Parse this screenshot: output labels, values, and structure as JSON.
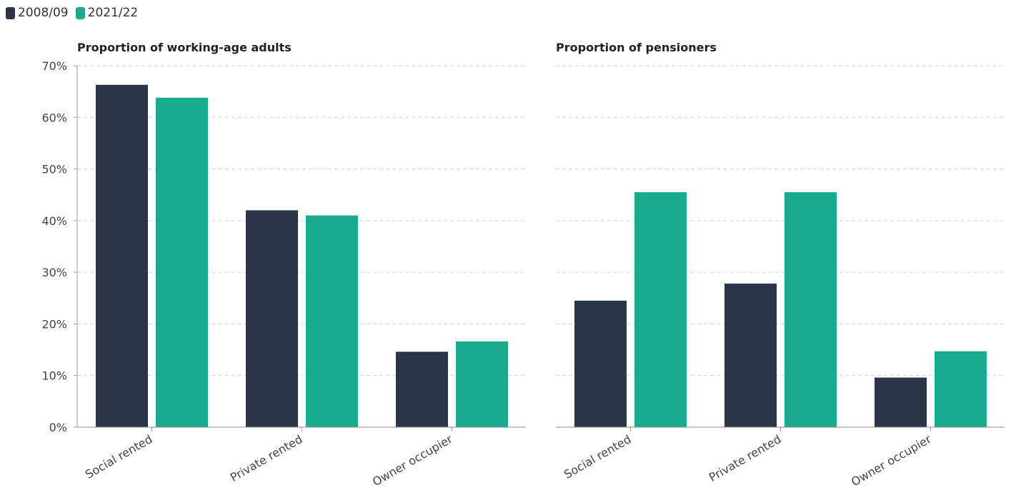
{
  "legend": {
    "items": [
      {
        "label": "2008/09",
        "color": "#2a3648"
      },
      {
        "label": "2021/22",
        "color": "#19ab8e"
      }
    ]
  },
  "chart_data": [
    {
      "type": "bar",
      "title": "Proportion of working-age adults",
      "categories": [
        "Social rented",
        "Private rented",
        "Owner occupier"
      ],
      "series": [
        {
          "name": "2008/09",
          "values": [
            66.3,
            42.0,
            14.6
          ]
        },
        {
          "name": "2021/22",
          "values": [
            63.8,
            41.0,
            16.6
          ]
        }
      ],
      "ylim": [
        0,
        70
      ],
      "yticks": [
        "0%",
        "10%",
        "20%",
        "30%",
        "40%",
        "50%",
        "60%",
        "70%"
      ],
      "grid": true,
      "legend_position": "top-left"
    },
    {
      "type": "bar",
      "title": "Proportion of pensioners",
      "categories": [
        "Social rented",
        "Private rented",
        "Owner occupier"
      ],
      "series": [
        {
          "name": "2008/09",
          "values": [
            24.5,
            27.8,
            9.6
          ]
        },
        {
          "name": "2021/22",
          "values": [
            45.5,
            45.5,
            14.7
          ]
        }
      ],
      "ylim": [
        0,
        70
      ],
      "grid": true,
      "legend_position": "top-left"
    }
  ]
}
